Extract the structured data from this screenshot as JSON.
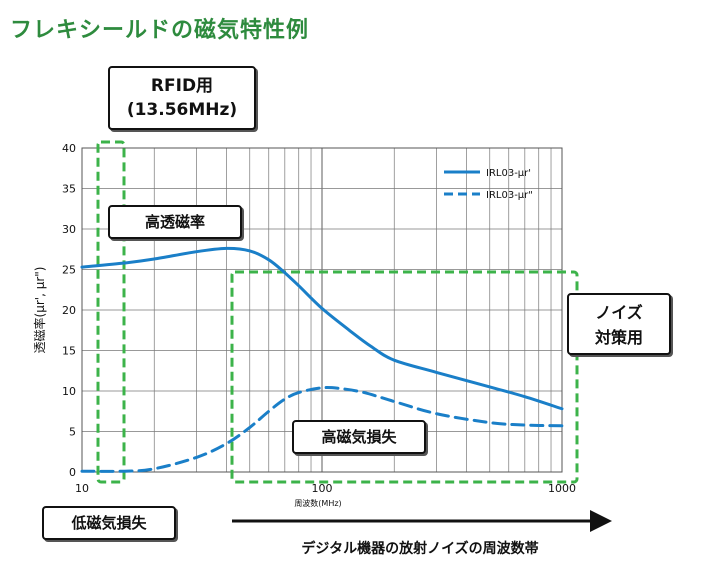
{
  "title": "フレキシールドの磁気特性例",
  "annotations": {
    "rfid_line1": "RFID用",
    "rfid_line2": "(13.56MHz)",
    "high_permeability": "高透磁率",
    "noise_line1": "ノイズ",
    "noise_line2": "対策用",
    "high_loss": "高磁気損失",
    "low_loss": "低磁気損失",
    "arrow_caption": "デジタル機器の放射ノイズの周波数帯"
  },
  "colors": {
    "series": "#1a7fc8",
    "highlight": "#3cb34a",
    "title": "#2e8b3e"
  },
  "chart_data": {
    "type": "line",
    "title": "",
    "xlabel": "周波数(MHz)",
    "ylabel": "透磁率(μr', μr\")",
    "xscale": "log",
    "xlim": [
      10,
      1000
    ],
    "ylim": [
      0,
      40
    ],
    "xticks": [
      10,
      100,
      1000
    ],
    "yticks": [
      0,
      5,
      10,
      15,
      20,
      25,
      30,
      35,
      40
    ],
    "grid": true,
    "legend_position": "top-right",
    "series": [
      {
        "name": "IRL03-μr'",
        "style": "solid",
        "x": [
          10,
          15,
          20,
          30,
          40,
          50,
          60,
          70,
          80,
          100,
          130,
          160,
          200,
          300,
          500,
          700,
          1000
        ],
        "y": [
          25.3,
          25.8,
          26.3,
          27.2,
          27.6,
          27.3,
          26.2,
          24.6,
          23.0,
          20.2,
          17.5,
          15.5,
          13.8,
          12.3,
          10.5,
          9.3,
          7.8
        ]
      },
      {
        "name": "IRL03-μr\"",
        "style": "dashed",
        "x": [
          10,
          15,
          20,
          30,
          40,
          50,
          60,
          70,
          80,
          100,
          120,
          150,
          200,
          300,
          500,
          700,
          1000
        ],
        "y": [
          0.1,
          0.1,
          0.4,
          1.8,
          3.5,
          5.5,
          7.5,
          9.0,
          9.8,
          10.4,
          10.3,
          9.8,
          8.7,
          7.2,
          6.1,
          5.8,
          5.7
        ]
      }
    ]
  }
}
